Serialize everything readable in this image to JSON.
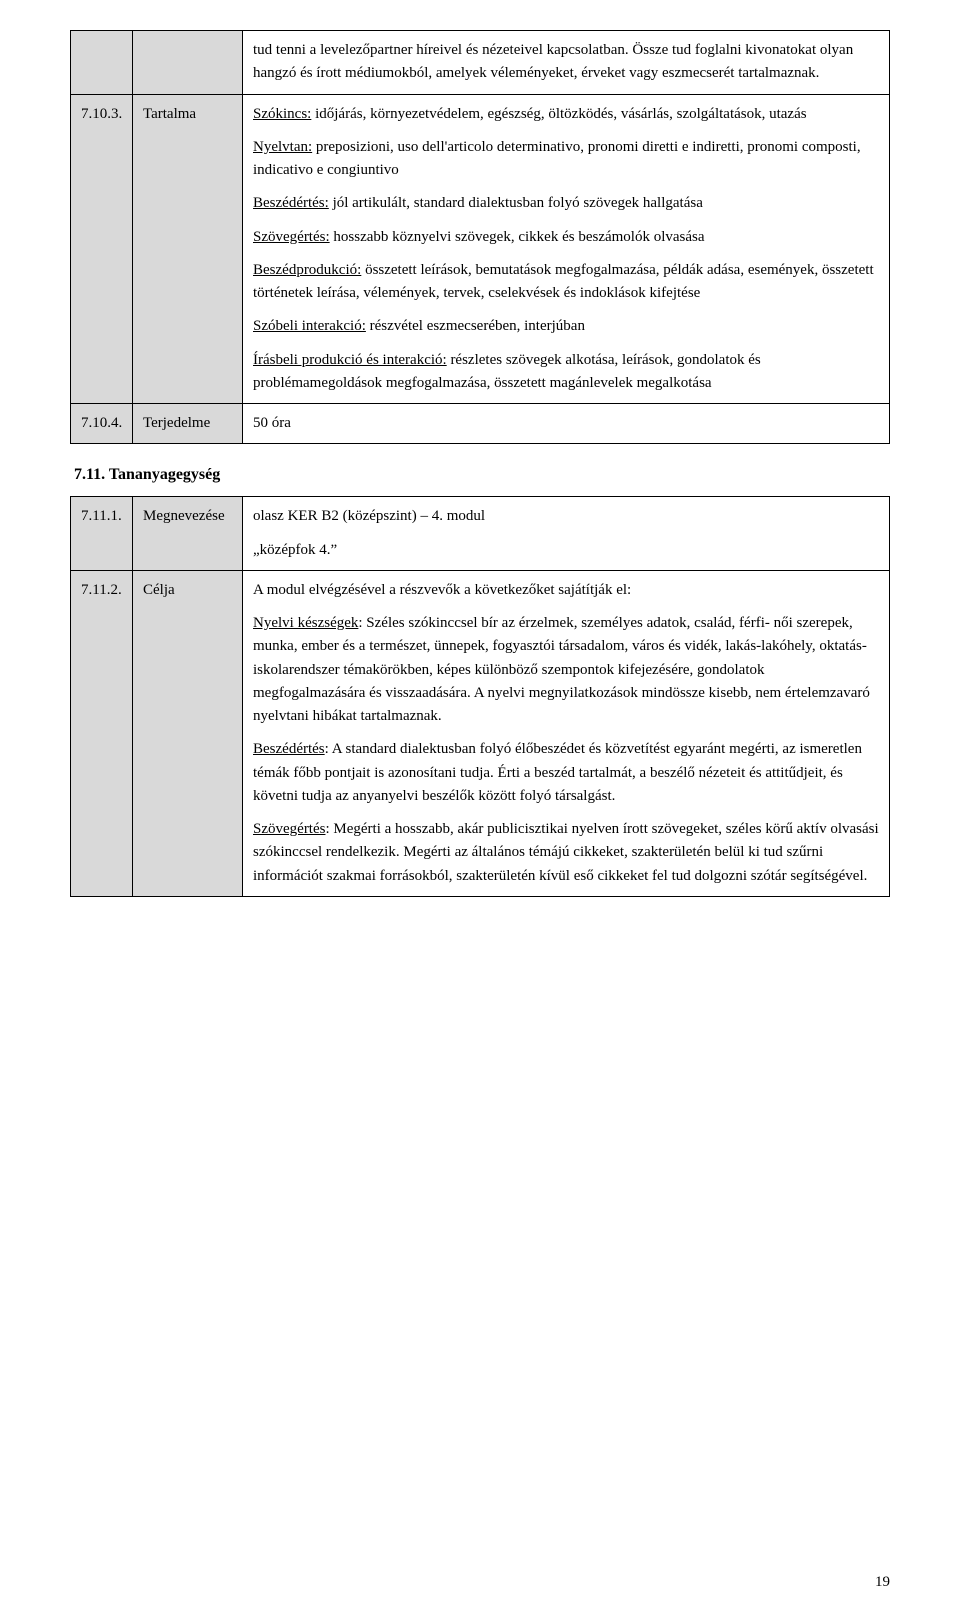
{
  "table1": {
    "rows": [
      {
        "num": "",
        "label": "",
        "body": {
          "paras": [
            {
              "runs": [
                {
                  "t": "tud tenni a levelezőpartner híreivel és nézeteivel kapcsolatban. Össze tud foglalni kivonatokat olyan hangzó és írott médiumokból, amelyek véleményeket, érveket vagy eszmecserét tartalmaznak."
                }
              ]
            }
          ]
        }
      },
      {
        "num": "7.10.3.",
        "label": "Tartalma",
        "body": {
          "paras": [
            {
              "runs": [
                {
                  "t": "Szókincs:",
                  "u": true
                },
                {
                  "t": " időjárás, környezetvédelem, egészség, öltözködés, vásárlás, szolgáltatások, utazás"
                }
              ]
            },
            {
              "runs": [
                {
                  "t": "Nyelvtan:",
                  "u": true
                },
                {
                  "t": " preposizioni, uso dell'articolo determinativo, pronomi diretti e indiretti, pronomi composti, indicativo e congiuntivo"
                }
              ]
            },
            {
              "runs": [
                {
                  "t": "Beszédértés:",
                  "u": true
                },
                {
                  "t": " jól artikulált, standard dialektusban folyó szövegek hallgatása"
                }
              ]
            },
            {
              "runs": [
                {
                  "t": "Szövegértés:",
                  "u": true
                },
                {
                  "t": " hosszabb köznyelvi szövegek, cikkek és beszámolók olvasása"
                }
              ]
            },
            {
              "runs": [
                {
                  "t": "Beszédprodukció:",
                  "u": true
                },
                {
                  "t": " összetett leírások, bemutatások megfogalmazása, példák adása, események, összetett történetek leírása, vélemények, tervek, cselekvések és indoklások kifejtése"
                }
              ]
            },
            {
              "runs": [
                {
                  "t": "Szóbeli interakció:",
                  "u": true
                },
                {
                  "t": " részvétel eszmecserében, interjúban"
                }
              ]
            },
            {
              "runs": [
                {
                  "t": "Írásbeli produkció és interakció:",
                  "u": true
                },
                {
                  "t": " részletes szövegek alkotása, leírások, gondolatok és problémamegoldások megfogalmazása, összetett magánlevelek megalkotása"
                }
              ]
            }
          ]
        }
      },
      {
        "num": "7.10.4.",
        "label": "Terjedelme",
        "body": {
          "paras": [
            {
              "runs": [
                {
                  "t": "50 óra"
                }
              ]
            }
          ]
        }
      }
    ]
  },
  "section_title": "7.11. Tananyagegység",
  "table2": {
    "rows": [
      {
        "num": "7.11.1.",
        "label": "Megnevezése",
        "body": {
          "paras": [
            {
              "runs": [
                {
                  "t": "olasz KER B2 (középszint) – 4. modul"
                }
              ]
            },
            {
              "runs": [
                {
                  "t": "„középfok 4.”"
                }
              ]
            }
          ]
        }
      },
      {
        "num": "7.11.2.",
        "label": "Célja",
        "body": {
          "paras": [
            {
              "runs": [
                {
                  "t": "A modul elvégzésével a részvevők a következőket sajátítják el:"
                }
              ]
            },
            {
              "runs": [
                {
                  "t": "Nyelvi készségek",
                  "u": true
                },
                {
                  "t": ": Széles szókinccsel bír az érzelmek, személyes adatok, család, férfi- női szerepek, munka, ember és a természet, ünnepek, fogyasztói társadalom, város és vidék, lakás-lakóhely, oktatás-iskolarendszer témakörökben, képes különböző szempontok kifejezésére, gondolatok megfogalmazására és visszaadására. A nyelvi megnyilatkozások mindössze kisebb, nem értelemzavaró nyelvtani hibákat tartalmaznak."
                }
              ]
            },
            {
              "runs": [
                {
                  "t": "Beszédértés",
                  "u": true
                },
                {
                  "t": ": A standard dialektusban folyó élőbeszédet és közvetítést egyaránt megérti, az ismeretlen témák főbb pontjait is azonosítani tudja. Érti a beszéd tartalmát, a beszélő nézeteit és attitűdjeit, és követni tudja az anyanyelvi beszélők között folyó társalgást."
                }
              ]
            },
            {
              "runs": [
                {
                  "t": "Szövegértés",
                  "u": true
                },
                {
                  "t": ": Megérti a hosszabb, akár publicisztikai nyelven írott szövegeket, széles körű aktív olvasási szókinccsel rendelkezik. Megérti az általános témájú cikkeket, szakterületén belül ki tud szűrni információt szakmai forrásokból, szakterületén kívül eső cikkeket fel tud dolgozni szótár segítségével."
                }
              ]
            }
          ]
        }
      }
    ]
  },
  "page_number": "19",
  "style": {
    "col_num_bg": "#d9d9d9",
    "col_label_bg": "#d9d9d9",
    "body_bg": "#ffffff",
    "border_color": "#000000",
    "font_size_pt": 15
  }
}
